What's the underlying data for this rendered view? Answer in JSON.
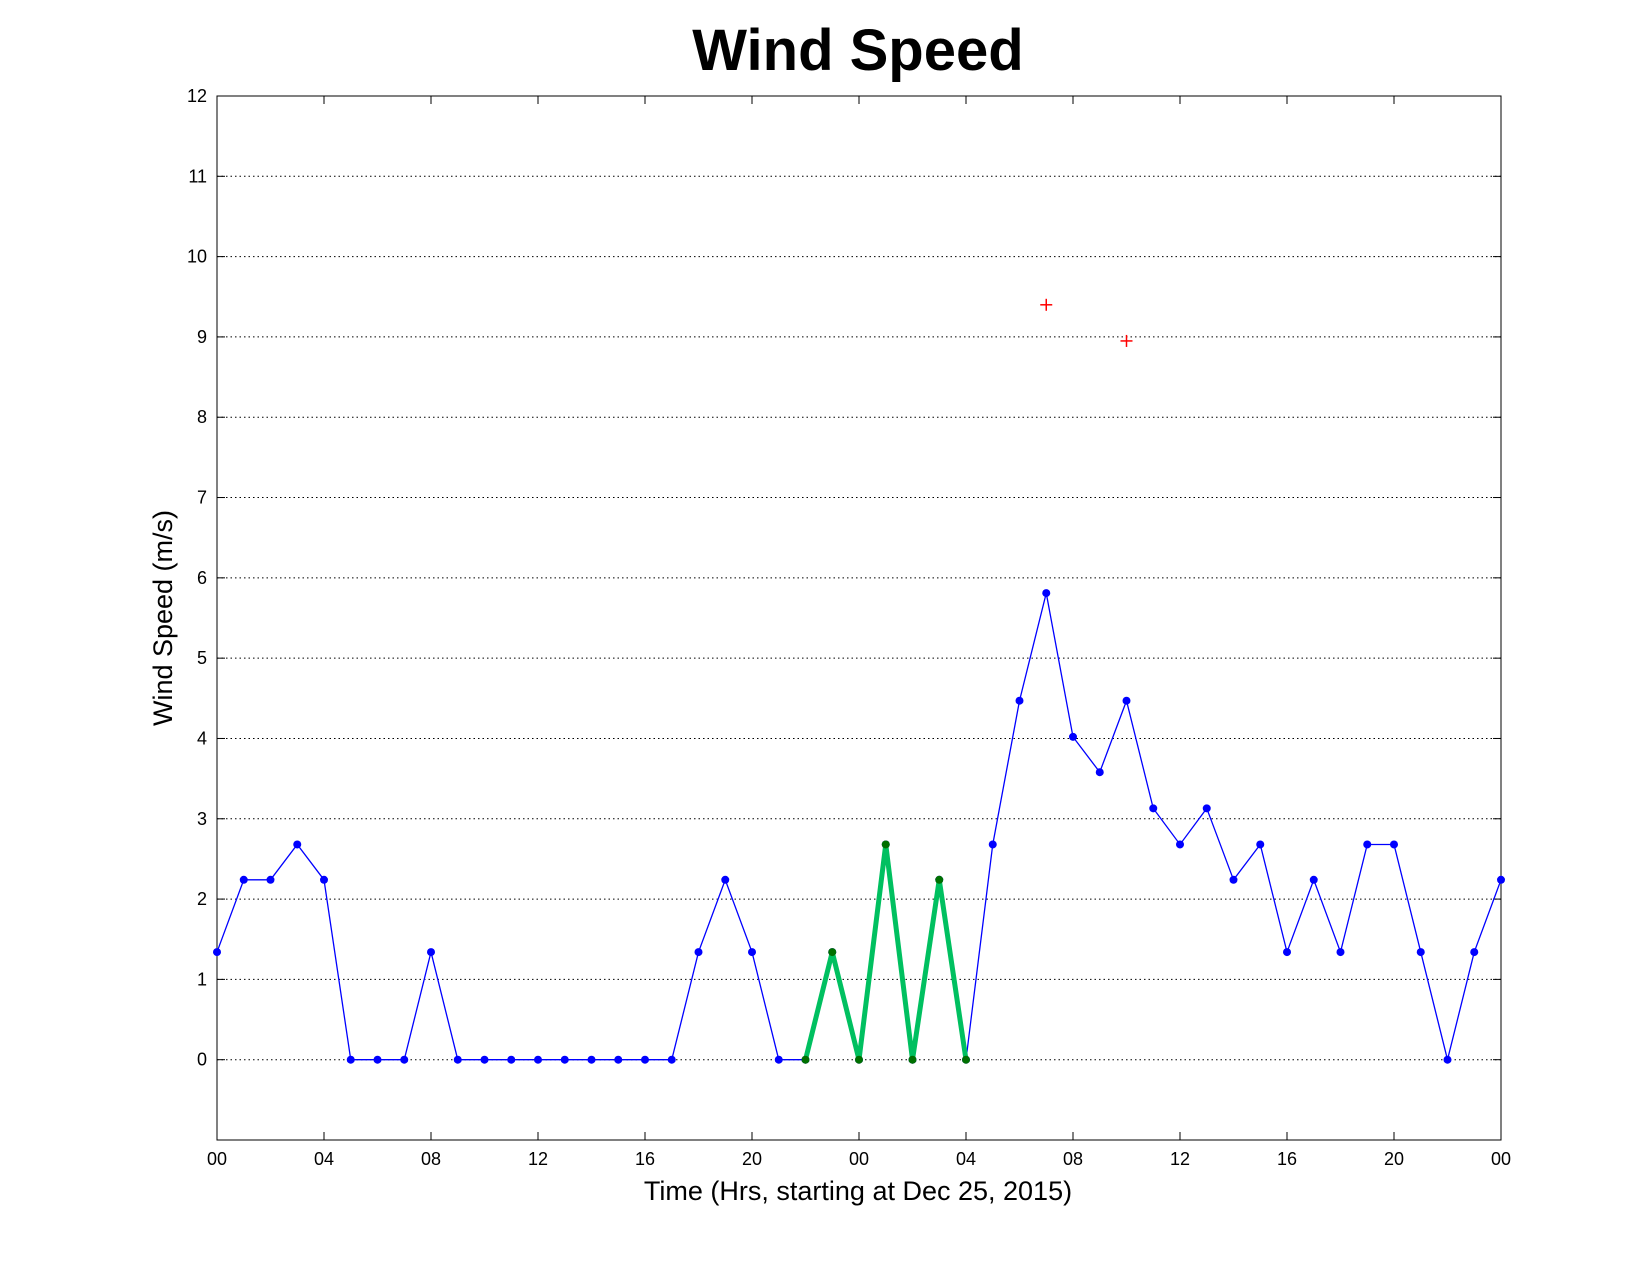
{
  "chart_data": {
    "type": "line",
    "title": "Wind Speed",
    "xlabel": "Time (Hrs, starting at Dec 25, 2015)",
    "ylabel": "Wind Speed (m/s)",
    "xlim": [
      0,
      48
    ],
    "ylim": [
      -1,
      12
    ],
    "grid": "horizontal-dotted",
    "y_ticks": [
      0,
      1,
      2,
      3,
      4,
      5,
      6,
      7,
      8,
      9,
      10,
      11,
      12
    ],
    "x_ticks": [
      {
        "x": 0,
        "label": "00"
      },
      {
        "x": 4,
        "label": "04"
      },
      {
        "x": 8,
        "label": "08"
      },
      {
        "x": 12,
        "label": "12"
      },
      {
        "x": 16,
        "label": "16"
      },
      {
        "x": 20,
        "label": "20"
      },
      {
        "x": 24,
        "label": "00"
      },
      {
        "x": 28,
        "label": "04"
      },
      {
        "x": 32,
        "label": "08"
      },
      {
        "x": 36,
        "label": "12"
      },
      {
        "x": 40,
        "label": "16"
      },
      {
        "x": 44,
        "label": "20"
      },
      {
        "x": 48,
        "label": "00"
      }
    ],
    "series": [
      {
        "color": "#0000ff",
        "style": "line-with-dots",
        "x": [
          0,
          1,
          2,
          3,
          4,
          5,
          6,
          7,
          8,
          9,
          10,
          11,
          12,
          13,
          14,
          15,
          16,
          17,
          18,
          19,
          20,
          21,
          22,
          23,
          24,
          25,
          26,
          27,
          28,
          29,
          30,
          31,
          32,
          33,
          34,
          35,
          36,
          37,
          38,
          39,
          40,
          41,
          42,
          43,
          44,
          45,
          46,
          47,
          48
        ],
        "values": [
          1.34,
          2.24,
          2.24,
          2.68,
          2.24,
          0,
          0,
          0,
          1.34,
          0,
          0,
          0,
          0,
          0,
          0,
          0,
          0,
          0,
          1.34,
          2.24,
          1.34,
          0,
          0,
          1.34,
          0,
          2.68,
          0,
          2.24,
          0,
          2.68,
          4.47,
          5.81,
          4.02,
          3.58,
          4.47,
          3.13,
          2.68,
          3.13,
          2.24,
          2.68,
          1.34,
          2.24,
          1.34,
          2.68,
          2.68,
          1.34,
          0,
          1.34,
          2.24
        ]
      },
      {
        "color": "#00c060",
        "marker_color": "#007000",
        "style": "thick-line-with-dots",
        "x": [
          22,
          23,
          24,
          25,
          26,
          27,
          28
        ],
        "values": [
          0,
          1.34,
          0,
          2.68,
          0,
          2.24,
          0
        ]
      },
      {
        "color": "#ff0000",
        "style": "plus-markers",
        "x": [
          31,
          34
        ],
        "values": [
          9.4,
          8.95
        ]
      }
    ]
  }
}
